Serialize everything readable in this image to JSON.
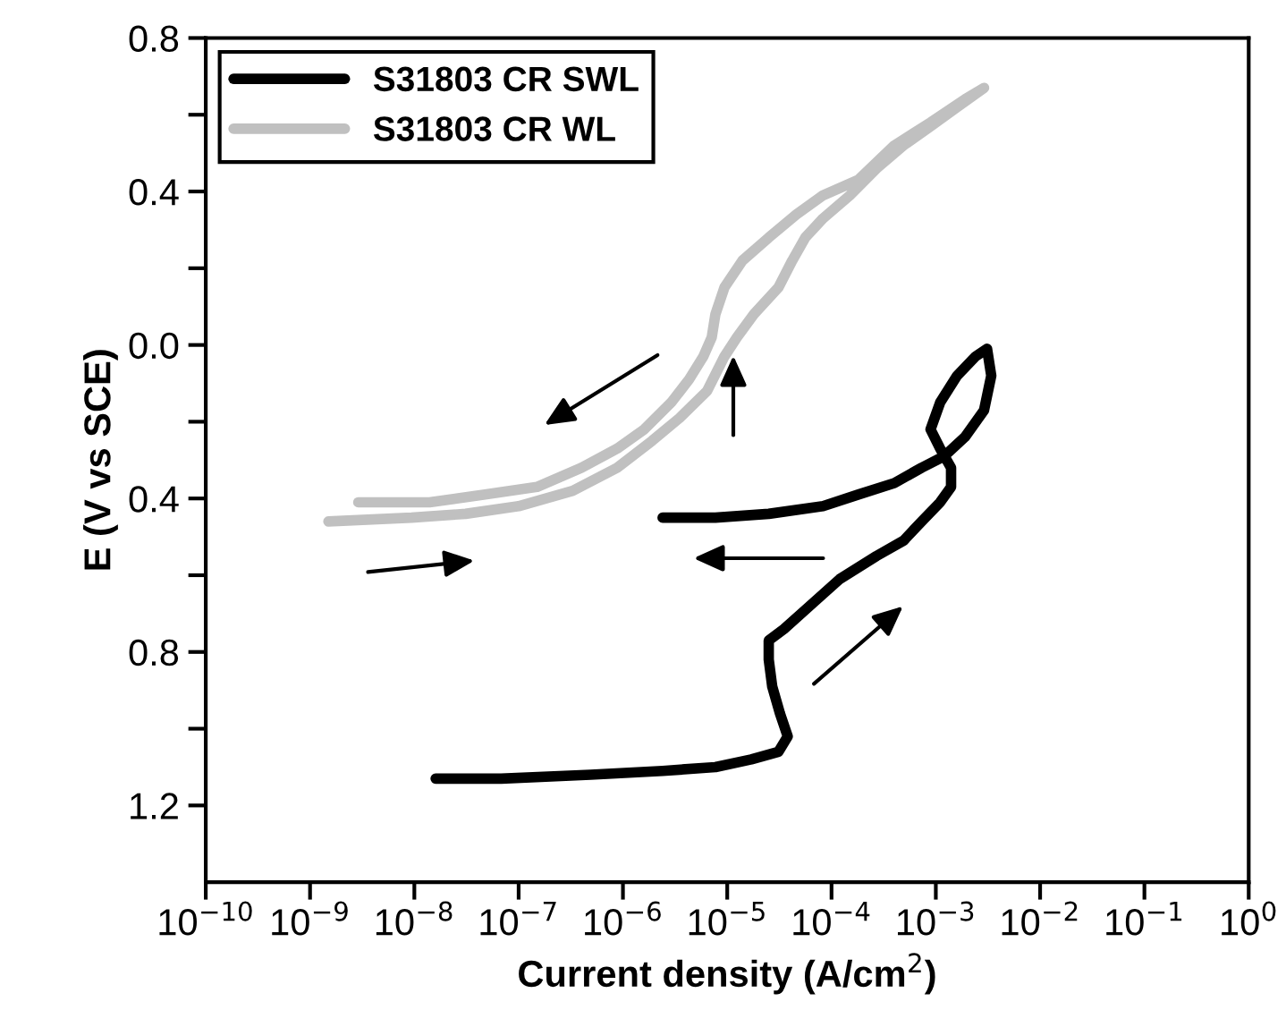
{
  "chart_data": {
    "type": "line",
    "xlabel": "Current density (A/cm$^{2}$)",
    "ylabel": "E (V vs SCE)",
    "log": "x",
    "grid": false,
    "legend": "top left",
    "marker": "none",
    "line_style": "solid",
    "xlim": [
      1e-10,
      1
    ],
    "ylim": [
      -1.4,
      0.8
    ],
    "xticks": [
      {
        "value": 1e-10,
        "label": "10$^{−10}$"
      },
      {
        "value": 1e-09,
        "label": "10$^{−9}$"
      },
      {
        "value": 1e-08,
        "label": "10$^{−8}$"
      },
      {
        "value": 1e-07,
        "label": "10$^{−7}$"
      },
      {
        "value": 1e-06,
        "label": "10$^{−6}$"
      },
      {
        "value": 1e-05,
        "label": "10$^{−5}$"
      },
      {
        "value": 0.0001,
        "label": "10$^{−4}$"
      },
      {
        "value": 0.001,
        "label": "10$^{−3}$"
      },
      {
        "value": 0.01,
        "label": "10$^{−2}$"
      },
      {
        "value": 0.1,
        "label": "10$^{−1}$"
      },
      {
        "value": 1,
        "label": "10$^{0}$"
      }
    ],
    "yticks": [
      0.8,
      {
        "value": 0.6,
        "label": null
      },
      0.4,
      {
        "value": 0.2,
        "label": null
      },
      {
        "value": 0,
        "label": "0.0"
      },
      {
        "value": -0.2,
        "label": null
      },
      {
        "value": -0.4,
        "label": "0.4"
      },
      {
        "value": -0.6,
        "label": null
      },
      {
        "value": -0.8,
        "label": "0.8"
      },
      {
        "value": -1.0,
        "label": null
      },
      {
        "value": -1.2,
        "label": "1.2"
      }
    ],
    "series": [
      {
        "name": "S31803 CR SWL",
        "color": "#000000",
        "x": [
          1.6e-08,
          6.8e-08,
          4.9e-07,
          2.4e-06,
          7.7e-06,
          1.7e-05,
          3.1e-05,
          3.8e-05,
          3.2e-05,
          2.7e-05,
          2.5e-05,
          2.5e-05,
          3.5e-05,
          6.8e-05,
          0.00012,
          0.00027,
          0.00049,
          0.00073,
          0.0011,
          0.0014,
          0.0014,
          0.0011,
          0.00089,
          0.0011,
          0.0016,
          0.0024,
          0.0031,
          0.0034,
          0.0029,
          0.0019,
          0.0012,
          0.00073,
          0.0004,
          0.00018,
          8.3e-05,
          2.5e-05,
          7.7e-06,
          2.4e-06
        ],
        "values": [
          -1.13,
          -1.13,
          -1.12,
          -1.11,
          -1.1,
          -1.08,
          -1.06,
          -1.02,
          -0.96,
          -0.89,
          -0.82,
          -0.77,
          -0.74,
          -0.67,
          -0.61,
          -0.55,
          -0.51,
          -0.46,
          -0.41,
          -0.37,
          -0.32,
          -0.27,
          -0.22,
          -0.15,
          -0.08,
          -0.03,
          -0.01,
          -0.08,
          -0.17,
          -0.24,
          -0.29,
          -0.32,
          -0.36,
          -0.39,
          -0.42,
          -0.44,
          -0.45,
          -0.45
        ]
      },
      {
        "name": "S31803 CR WL",
        "color": "#c0c0c0",
        "x": [
          1.5e-09,
          9.4e-09,
          3.1e-08,
          1e-07,
          3.3e-07,
          8.8e-07,
          1.9e-06,
          3.5e-06,
          6.4e-06,
          9.4e-06,
          1.24e-05,
          1.8e-05,
          3.1e-05,
          4.2e-05,
          5.6e-05,
          8.3e-05,
          0.00015,
          0.00027,
          0.00049,
          0.00089,
          0.0016,
          0.0029,
          0.0019,
          0.00089,
          0.0004,
          0.00018,
          8.3e-05,
          4.6e-05,
          2.5e-05,
          1.4e-05,
          9.4e-06,
          7.7e-06,
          7.1e-06,
          5.9e-06,
          4.3e-06,
          2.9e-06,
          1.6e-06,
          8.8e-07,
          4e-07,
          1.5e-07,
          4.6e-08,
          1.4e-08,
          2.9e-09
        ],
        "values": [
          -0.46,
          -0.45,
          -0.44,
          -0.42,
          -0.38,
          -0.32,
          -0.25,
          -0.19,
          -0.12,
          -0.03,
          0.02,
          0.08,
          0.15,
          0.22,
          0.28,
          0.33,
          0.39,
          0.46,
          0.52,
          0.57,
          0.62,
          0.67,
          0.64,
          0.58,
          0.52,
          0.43,
          0.39,
          0.34,
          0.28,
          0.22,
          0.15,
          0.08,
          0.02,
          -0.03,
          -0.09,
          -0.15,
          -0.22,
          -0.27,
          -0.32,
          -0.37,
          -0.39,
          -0.41,
          -0.41
        ]
      }
    ]
  }
}
